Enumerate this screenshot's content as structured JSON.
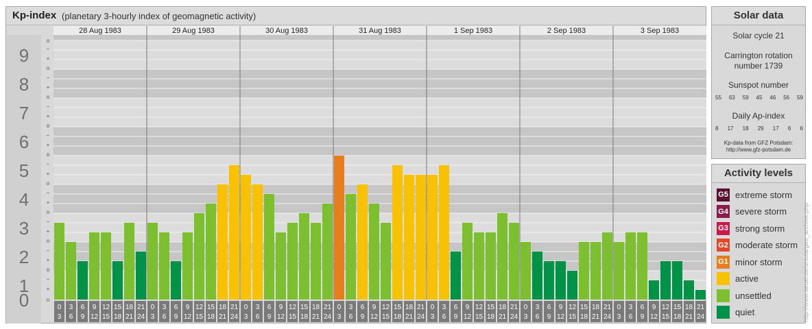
{
  "header": {
    "title": "Kp-index",
    "subtitle": "(planetary 3-hourly index of geomagnetic activity)"
  },
  "colors": {
    "quiet": "#009347",
    "unsettled": "#7cbf2f",
    "active": "#f8c200",
    "minor_storm": "#e67e1e",
    "moderate_storm": "#e0482c",
    "strong_storm": "#c8194a",
    "severe_storm": "#8a1b4b",
    "extreme_storm": "#5a0f2e"
  },
  "chart_data": {
    "type": "bar",
    "ylim": [
      0,
      9
    ],
    "y_ticks": [
      "0",
      "1",
      "2",
      "3",
      "4",
      "5",
      "6",
      "7",
      "8",
      "9"
    ],
    "sub_ticks": [
      "o",
      "+",
      "−"
    ],
    "days": [
      "28 Aug 1983",
      "29 Aug 1983",
      "30 Aug 1983",
      "31 Aug 1983",
      "1 Sep 1983",
      "2 Sep 1983",
      "3 Sep 1983"
    ],
    "interval_top": [
      "0",
      "3",
      "6",
      "9",
      "12",
      "15",
      "18",
      "21"
    ],
    "interval_bottom": [
      "3",
      "6",
      "9",
      "12",
      "15",
      "18",
      "21",
      "24"
    ],
    "values": [
      [
        2.667,
        2.0,
        1.333,
        2.333,
        2.333,
        1.333,
        2.667,
        1.667
      ],
      [
        2.667,
        2.333,
        1.333,
        2.333,
        3.0,
        3.333,
        4.0,
        4.667
      ],
      [
        4.333,
        4.0,
        3.667,
        2.333,
        2.667,
        3.0,
        2.667,
        3.333
      ],
      [
        5.0,
        3.667,
        4.0,
        3.333,
        2.667,
        4.667,
        4.333,
        4.333
      ],
      [
        4.333,
        4.667,
        1.667,
        2.667,
        2.333,
        2.333,
        3.0,
        2.667
      ],
      [
        2.0,
        1.667,
        1.333,
        1.333,
        1.0,
        2.0,
        2.0,
        2.333
      ],
      [
        2.0,
        2.333,
        2.333,
        0.667,
        1.333,
        1.333,
        0.667,
        0.333
      ]
    ]
  },
  "solar": {
    "title": "Solar data",
    "cycle": "Solar cycle 21",
    "carrington_line1": "Carrington rotation",
    "carrington_line2": "number 1739",
    "sunspot_title": "Sunspot number",
    "sunspots": [
      "55",
      "63",
      "59",
      "45",
      "46",
      "56",
      "59"
    ],
    "ap_title": "Daily Ap-index",
    "ap": [
      "8",
      "17",
      "18",
      "29",
      "17",
      "6",
      "6"
    ],
    "credit_line1": "Kp-data from GFZ Potsdam:",
    "credit_line2": "http://www.gfz-potsdam.de"
  },
  "activity": {
    "title": "Activity levels",
    "levels": [
      {
        "badge": "G5",
        "label": "extreme storm",
        "color": "#5a0f2e"
      },
      {
        "badge": "G4",
        "label": "severe storm",
        "color": "#8a1b4b"
      },
      {
        "badge": "G3",
        "label": "strong storm",
        "color": "#c8194a"
      },
      {
        "badge": "G2",
        "label": "moderate storm",
        "color": "#e0482c"
      },
      {
        "badge": "G1",
        "label": "minor storm",
        "color": "#e67e1e"
      },
      {
        "badge": "",
        "label": "active",
        "color": "#f8c200"
      },
      {
        "badge": "",
        "label": "unsettled",
        "color": "#7cbf2f"
      },
      {
        "badge": "",
        "label": "quiet",
        "color": "#009347"
      }
    ]
  },
  "credit": "http://www.tieuel.de/ursula/geo_archive.php"
}
